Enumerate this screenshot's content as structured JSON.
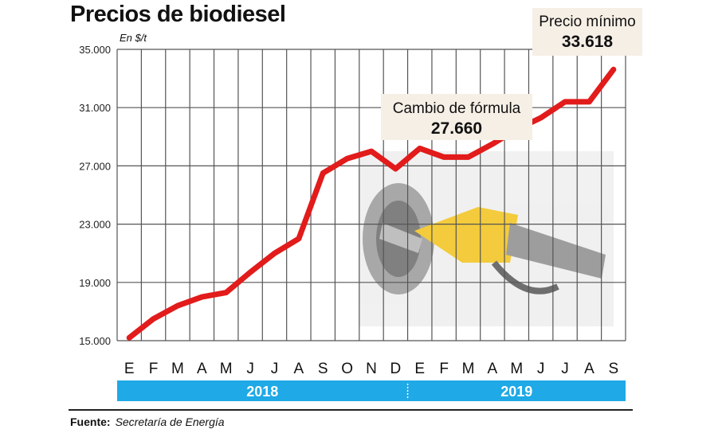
{
  "title": "Precios de biodiesel",
  "unit_label": "En $/t",
  "source_label": "Fuente:",
  "source_text": "Secretaría de Energía",
  "colors": {
    "line": "#e21b1b",
    "year_band": "#1fa9e6",
    "grid": "#555555",
    "annotation_bg": "#f6efe6"
  },
  "chart_data": {
    "type": "line",
    "title": "Precios de biodiesel",
    "ylabel": "En $/t",
    "ylim": [
      15000,
      35000
    ],
    "yticks": [
      15000,
      19000,
      23000,
      27000,
      31000,
      35000
    ],
    "ytick_labels": [
      "15.000",
      "19.000",
      "23.000",
      "27.000",
      "31.000",
      "35.000"
    ],
    "categories": [
      "E",
      "F",
      "M",
      "A",
      "M",
      "J",
      "J",
      "A",
      "S",
      "O",
      "N",
      "D",
      "E",
      "F",
      "M",
      "A",
      "M",
      "J",
      "J",
      "A",
      "S"
    ],
    "years": [
      {
        "label": "2018",
        "months": 12
      },
      {
        "label": "2019",
        "months": 9
      }
    ],
    "values": [
      15200,
      16500,
      17400,
      18000,
      18300,
      19700,
      21000,
      22000,
      26500,
      27500,
      28000,
      26800,
      28200,
      27600,
      27600,
      28500,
      29500,
      30300,
      31400,
      31400,
      33618
    ],
    "annotations": [
      {
        "label": "Cambio de fórmula",
        "value": "27.660"
      },
      {
        "label": "Precio mínimo",
        "value": "33.618"
      }
    ],
    "grid": true
  }
}
